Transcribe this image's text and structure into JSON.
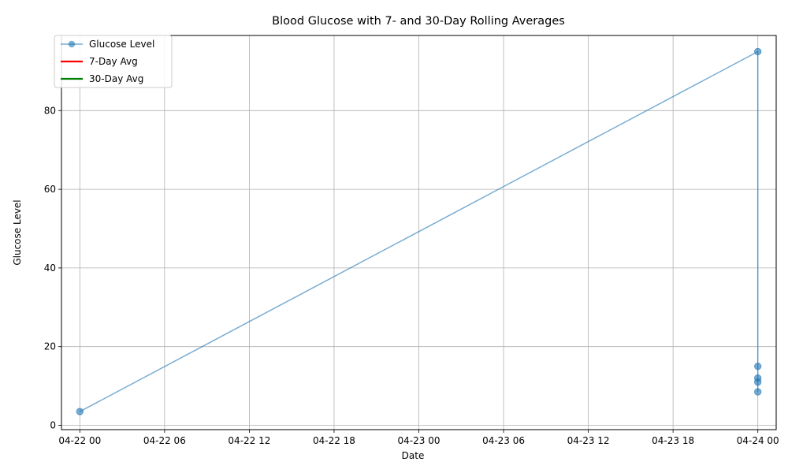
{
  "chart_data": {
    "type": "line",
    "title": "Blood Glucose with 7- and 30-Day Rolling Averages",
    "xlabel": "Date",
    "ylabel": "Glucose Level",
    "x_ticks": [
      "04-22 00",
      "04-22 06",
      "04-22 12",
      "04-22 18",
      "04-23 00",
      "04-23 06",
      "04-23 12",
      "04-23 18",
      "04-24 00"
    ],
    "x_tick_hours": [
      0,
      6,
      12,
      18,
      24,
      30,
      36,
      42,
      48
    ],
    "xlim_hours": [
      -1.3,
      49.3
    ],
    "y_ticks": [
      0,
      20,
      40,
      60,
      80
    ],
    "ylim": [
      -1.1,
      99.1
    ],
    "grid": true,
    "legend_position": "upper-left",
    "series": [
      {
        "name": "Glucose Level",
        "color": "#1f77b4",
        "marker": "circle",
        "points": [
          {
            "hour": 0,
            "value": 3.5
          },
          {
            "hour": 48,
            "value": 95
          },
          {
            "hour": 48,
            "value": 15
          },
          {
            "hour": 48,
            "value": 12
          },
          {
            "hour": 48,
            "value": 11
          },
          {
            "hour": 48,
            "value": 8.5
          }
        ]
      },
      {
        "name": "7-Day Avg",
        "color": "#ff0000",
        "marker": "none",
        "points": []
      },
      {
        "name": "30-Day Avg",
        "color": "#008000",
        "marker": "none",
        "points": []
      }
    ]
  }
}
